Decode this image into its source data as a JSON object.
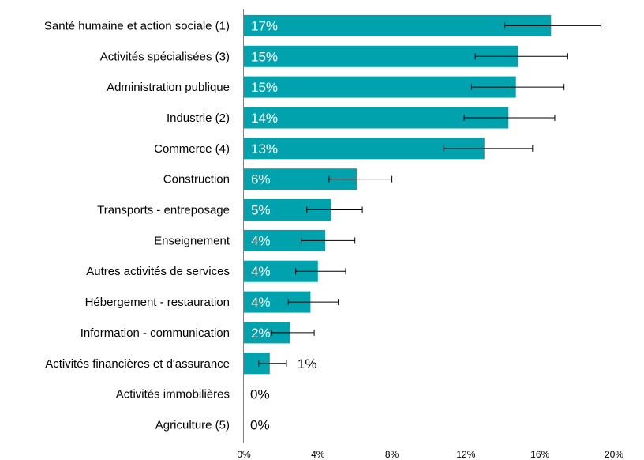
{
  "colors": {
    "bar": "#00A3AD",
    "inner_label": "#ffffff",
    "outer_label": "#000000",
    "axis": "#808080",
    "error_bar": "#000000"
  },
  "chart_data": {
    "type": "bar",
    "orientation": "horizontal",
    "title": "",
    "xlabel": "",
    "ylabel": "",
    "xlim": [
      0,
      20
    ],
    "x_ticks": [
      0,
      4,
      8,
      12,
      16,
      20
    ],
    "x_tick_labels": [
      "0%",
      "4%",
      "8%",
      "12%",
      "16%",
      "20%"
    ],
    "grid": false,
    "categories": [
      "Santé humaine et action sociale (1)",
      "Activités spécialisées (3)",
      "Administration publique",
      "Industrie (2)",
      "Commerce (4)",
      "Construction",
      "Transports - entreposage",
      "Enseignement",
      "Autres activités de services",
      "Hébergement - restauration",
      "Information - communication",
      "Activités financières et d'assurance",
      "Activités immobilières",
      "Agriculture (5)"
    ],
    "values": [
      16.6,
      14.8,
      14.7,
      14.3,
      13.0,
      6.1,
      4.7,
      4.4,
      4.0,
      3.6,
      2.5,
      1.4,
      0.0,
      0.0
    ],
    "data_labels": [
      "17%",
      "15%",
      "15%",
      "14%",
      "13%",
      "6%",
      "5%",
      "4%",
      "4%",
      "4%",
      "2%",
      "1%",
      "0%",
      "0%"
    ],
    "error_low": [
      14.1,
      12.5,
      12.3,
      11.9,
      10.8,
      4.6,
      3.4,
      3.1,
      2.8,
      2.4,
      1.5,
      0.8,
      0.0,
      0.0
    ],
    "error_high": [
      19.3,
      17.5,
      17.3,
      16.8,
      15.6,
      8.0,
      6.4,
      6.0,
      5.5,
      5.1,
      3.8,
      2.3,
      0.0,
      0.0
    ]
  }
}
